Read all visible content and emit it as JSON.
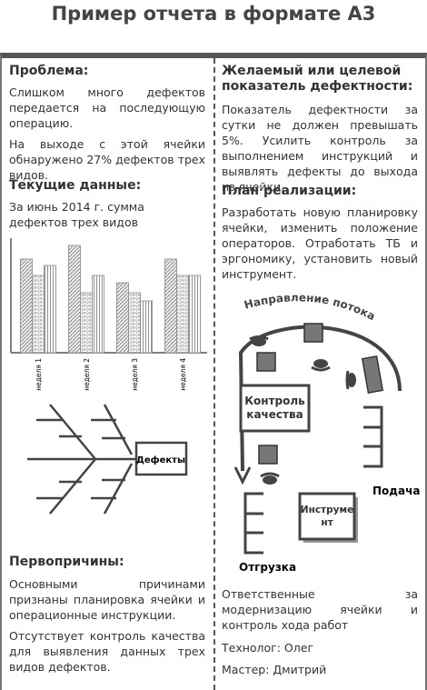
{
  "title": "Пример отчета в формате А3",
  "left": {
    "problem": {
      "heading": "Проблема:",
      "paragraphs": [
        "Слишком много дефектов передается на последующую операцию.",
        "На выходе с этой ячейки обнаружено 27% дефектов трех видов."
      ]
    },
    "current": {
      "heading": "Текущие данные:",
      "text": "За июнь 2014 г. сумма дефектов трех видов"
    },
    "fishbone": {
      "label": "Дефекты"
    },
    "causes": {
      "heading": "Первопричины:",
      "paragraphs": [
        "Основными причинами признаны планировка ячейки и операционные инструкции.",
        "Отсутствует контроль качества для выявления данных трех видов дефектов."
      ]
    }
  },
  "chart_data": {
    "type": "bar",
    "categories": [
      "неделя 1",
      "неделя 2",
      "неделя 3",
      "неделя 4"
    ],
    "series": [
      {
        "color": "#888",
        "values": [
          103,
          118,
          77,
          103
        ]
      },
      {
        "color": "#888",
        "values": [
          85,
          66,
          66,
          85
        ]
      },
      {
        "color": "#888",
        "values": [
          96,
          85,
          57,
          85
        ]
      }
    ],
    "ylim": [
      0,
      126
    ]
  },
  "right": {
    "target": {
      "heading": "Желаемый или целевой показатель дефектности:",
      "text": "Показатель дефектности за сутки не должен превышать 5%. Усилить контроль за выполнением инструкций и выявлять дефекты до выхода из ячейки."
    },
    "plan": {
      "heading": "План реализации:",
      "text": "Разработать новую планировку ячейки, изменить положение операторов. Отработать ТБ и эргономику, установить новый инструмент."
    },
    "diagram": {
      "flow": "Направление потока",
      "quality": "Контроль качества",
      "tool": "Инструмент",
      "supply": "Подача",
      "shipment": "Отгрузка"
    },
    "responsible": {
      "text": "Ответственные за модернизацию ячейки и контроль хода работ",
      "technologist": "Технолог: Олег",
      "master": "Мастер: Дмитрий"
    }
  }
}
